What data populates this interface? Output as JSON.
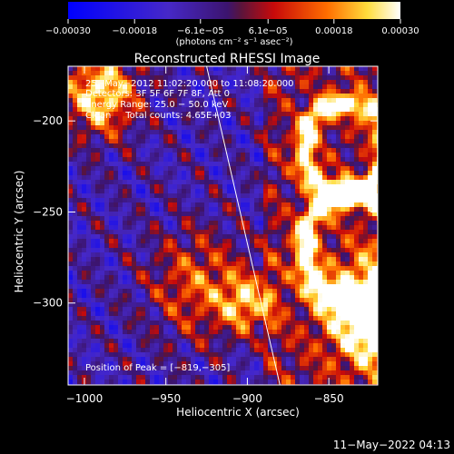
{
  "chart_data": {
    "type": "heatmap",
    "title": "Reconstructed RHESSI Image",
    "xlabel": "Heliocentric X (arcsec)",
    "ylabel": "Heliocentric Y (arcsec)",
    "xlim": [
      -1010,
      -820
    ],
    "ylim": [
      -345,
      -170
    ],
    "x_ticks": [
      -1000,
      -950,
      -900,
      -850
    ],
    "y_ticks": [
      -200,
      -250,
      -300
    ],
    "x_tick_labels": [
      "−1000",
      "−950",
      "−900",
      "−850"
    ],
    "y_tick_labels": [
      "−200",
      "−250",
      "−300"
    ],
    "colorbar": {
      "range": [
        -0.0003,
        0.0003
      ],
      "tick_values": [
        -0.0003,
        -0.00018,
        -6.1e-05,
        6.1e-05,
        0.00018,
        0.0003
      ],
      "tick_labels": [
        "−0.00030",
        "−0.00018",
        "−6.1e−05",
        "6.1e−05",
        "0.00018",
        "0.00030"
      ],
      "units_label": "(photons cm⁻² s⁻¹ asec⁻²)"
    },
    "annotations": [
      "25−May−2012 11:02:20.000 to 11:08:20.000",
      "Detectors: 3F 5F 6F 7F 8F, Att 0",
      "Energy Range: 25.0 − 50.0 keV",
      "Clean     Total counts: 4.65E+03"
    ],
    "peak_label": "Position of Peak = [−819,−305]",
    "peak_position": [
      -819,
      -305
    ],
    "limb_line": [
      [
        -925,
        -170
      ],
      [
        -880,
        -345
      ]
    ],
    "grid": false
  },
  "footer": {
    "timestamp": "11−May−2022 04:13"
  }
}
